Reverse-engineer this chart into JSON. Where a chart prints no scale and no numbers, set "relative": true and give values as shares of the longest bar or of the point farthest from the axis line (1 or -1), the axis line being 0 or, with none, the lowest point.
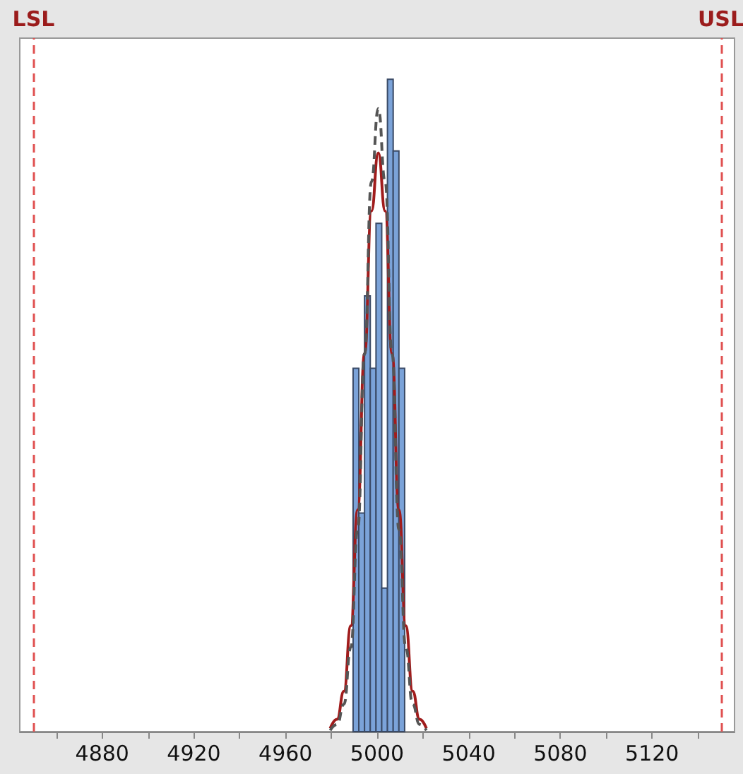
{
  "chart_data": {
    "type": "histogram",
    "relative": true,
    "bins": [
      4989.5,
      4992,
      4994.5,
      4997,
      4999.5,
      5002,
      5004.5,
      5007,
      5009.5,
      5012
    ],
    "values": [
      0.557,
      0.335,
      0.668,
      0.557,
      0.779,
      0.22,
      1,
      0.89,
      0.557
    ],
    "color": "#7ba3d9",
    "series": [
      {
        "type": "line",
        "color": "#a01c1c",
        "line_style": "solid",
        "x": [
          4979.5,
          4982.5,
          4985.5,
          4988.5,
          4991.5,
          4994.5,
          4997.5,
          5000.5,
          5003.5,
          5006.5,
          5009.5,
          5012.5,
          5015.5,
          5018.5,
          5021.5
        ],
        "values": [
          0.005,
          0.019,
          0.062,
          0.162,
          0.34,
          0.579,
          0.798,
          0.887,
          0.798,
          0.579,
          0.34,
          0.162,
          0.062,
          0.019,
          0.005
        ]
      },
      {
        "type": "line",
        "color": "#555555",
        "line_style": "dashed",
        "x": [
          4979.5,
          4982.5,
          4985.5,
          4988.5,
          4991.5,
          4994.5,
          4997.5,
          5000.5,
          5003.5,
          5006.5,
          5009.5,
          5012.5,
          5015.5,
          5018.5,
          5021.5
        ],
        "values": [
          0.002,
          0.011,
          0.042,
          0.129,
          0.31,
          0.579,
          0.843,
          0.955,
          0.843,
          0.579,
          0.31,
          0.129,
          0.042,
          0.011,
          0.002
        ]
      }
    ],
    "xlim": [
      4844,
      5156
    ],
    "xticks": [
      {
        "value": 4860,
        "label": null
      },
      4880,
      {
        "value": 4900,
        "label": null
      },
      4920,
      {
        "value": 4940,
        "label": null
      },
      4960,
      {
        "value": 4980,
        "label": null
      },
      5000,
      {
        "value": 5020,
        "label": null
      },
      5040,
      {
        "value": 5060,
        "label": null
      },
      5080,
      {
        "value": 5100,
        "label": null
      },
      5120,
      {
        "value": 5140,
        "label": null
      }
    ],
    "ref_lines": [
      {
        "axis": "x",
        "value": 4850,
        "label": "LSL",
        "color": "#e05050",
        "line_style": "dashed"
      },
      {
        "axis": "x",
        "value": 5150,
        "label": "USL",
        "color": "#e05050",
        "line_style": "dashed"
      }
    ],
    "grid": false
  }
}
